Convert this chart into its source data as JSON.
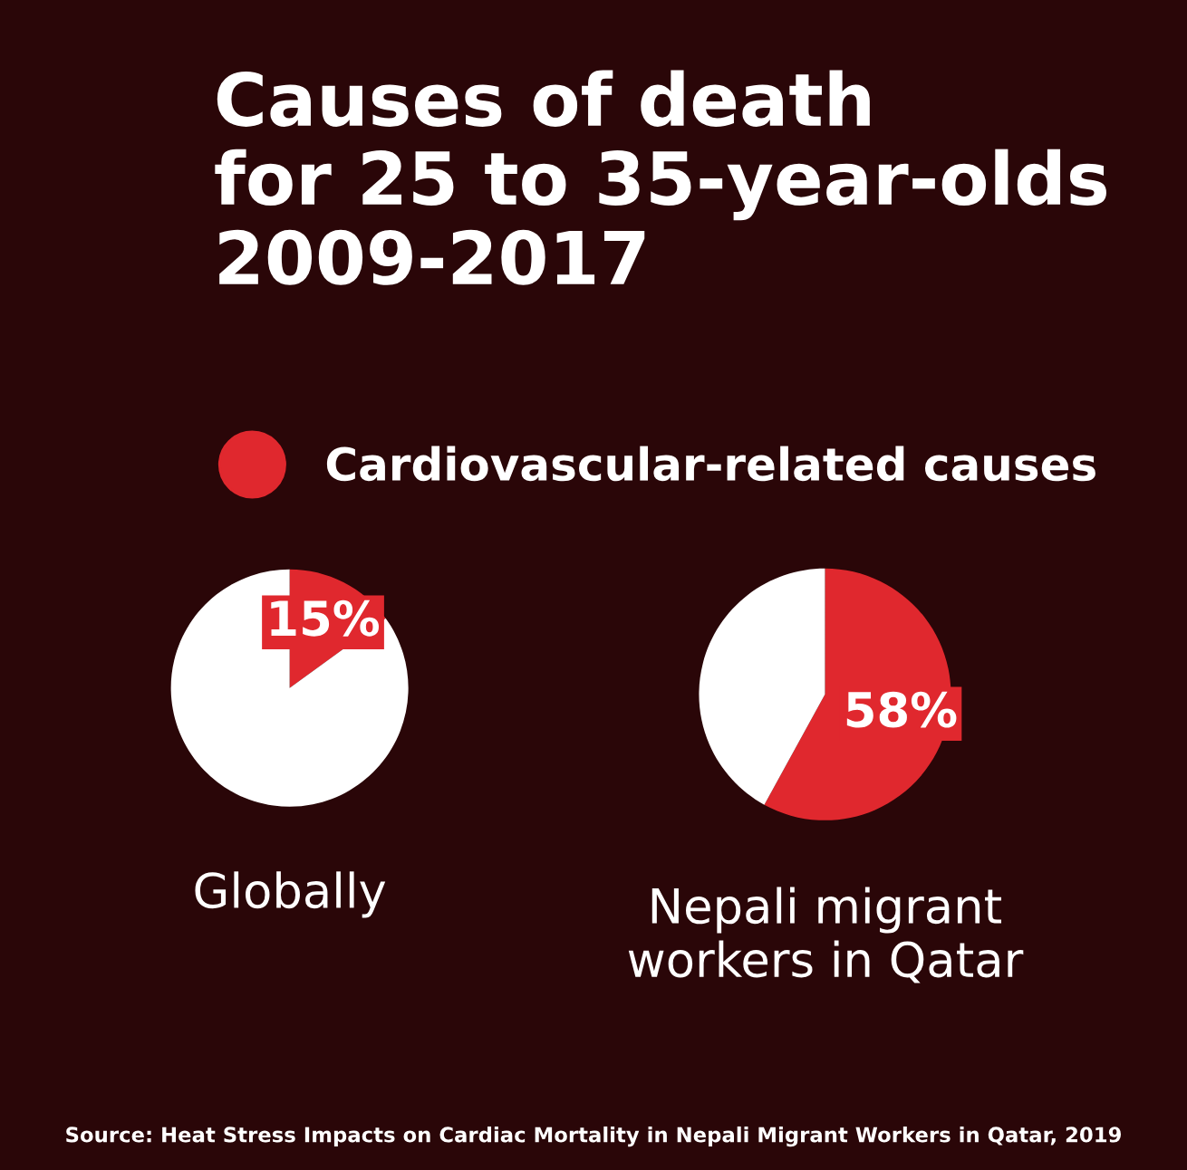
{
  "chart_data": [
    {
      "type": "pie",
      "title": "Causes of death\nfor 25 to 35-year-olds\n2009-2017",
      "categories": [
        "Cardiovascular-related causes",
        null
      ],
      "values": [
        15,
        85
      ],
      "colors": [
        "#e0282e",
        "#ffffff"
      ],
      "value_labels": [
        "15%",
        null
      ],
      "xlabel": "Globally",
      "legend": "top"
    },
    {
      "type": "pie",
      "categories": [
        null,
        null
      ],
      "values": [
        58,
        42
      ],
      "colors": [
        "#e0282e",
        "#ffffff"
      ],
      "value_labels": [
        "58%",
        null
      ],
      "xlabel": "Nepali migrant\nworkers in Qatar",
      "annotations": [
        "Source: Heat Stress Impacts on Cardiac Mortality in Nepali Migrant Workers in Qatar, 2019"
      ]
    }
  ]
}
